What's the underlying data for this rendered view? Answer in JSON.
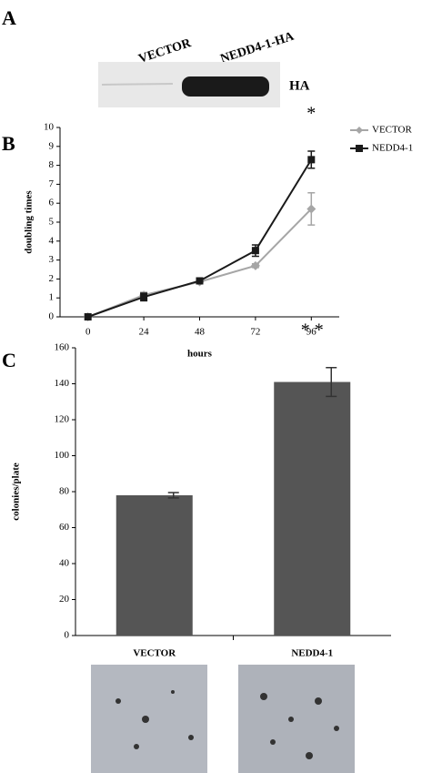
{
  "panel_labels": [
    "A",
    "B",
    "C"
  ],
  "blot": {
    "lanes": [
      "VECTOR",
      "NEDD4-1-HA"
    ],
    "label": "HA"
  },
  "chart_data": [
    {
      "type": "line",
      "x_label": "hours",
      "y_label": "doubling times",
      "annotation": "*",
      "x": [
        0,
        24,
        48,
        72,
        96
      ],
      "xlim": [
        -12,
        108
      ],
      "xticks": [
        0,
        24,
        48,
        72,
        96
      ],
      "ylim": [
        0,
        10
      ],
      "yticks": [
        0,
        1,
        2,
        3,
        4,
        5,
        6,
        7,
        8,
        9,
        10
      ],
      "series": [
        {
          "name": "VECTOR",
          "color": "#a6a6a6",
          "marker": "diamond",
          "values": [
            0,
            1.15,
            1.85,
            2.7,
            5.7
          ],
          "errors": [
            0,
            0.15,
            0.1,
            0.1,
            0.85
          ]
        },
        {
          "name": "NEDD4-1",
          "color": "#1a1a1a",
          "marker": "square",
          "values": [
            0,
            1.05,
            1.9,
            3.5,
            8.3
          ],
          "errors": [
            0,
            0.2,
            0.1,
            0.3,
            0.45
          ]
        }
      ],
      "legend": "right"
    },
    {
      "type": "bar",
      "y_label": "colonies/plate",
      "annotation": "* *",
      "categories": [
        "VECTOR",
        "NEDD4-1"
      ],
      "values": [
        78,
        141
      ],
      "errors": [
        1.5,
        8
      ],
      "color": "#555555",
      "ylim": [
        0,
        160
      ],
      "yticks": [
        0,
        20,
        40,
        60,
        80,
        100,
        120,
        140,
        160
      ]
    }
  ]
}
